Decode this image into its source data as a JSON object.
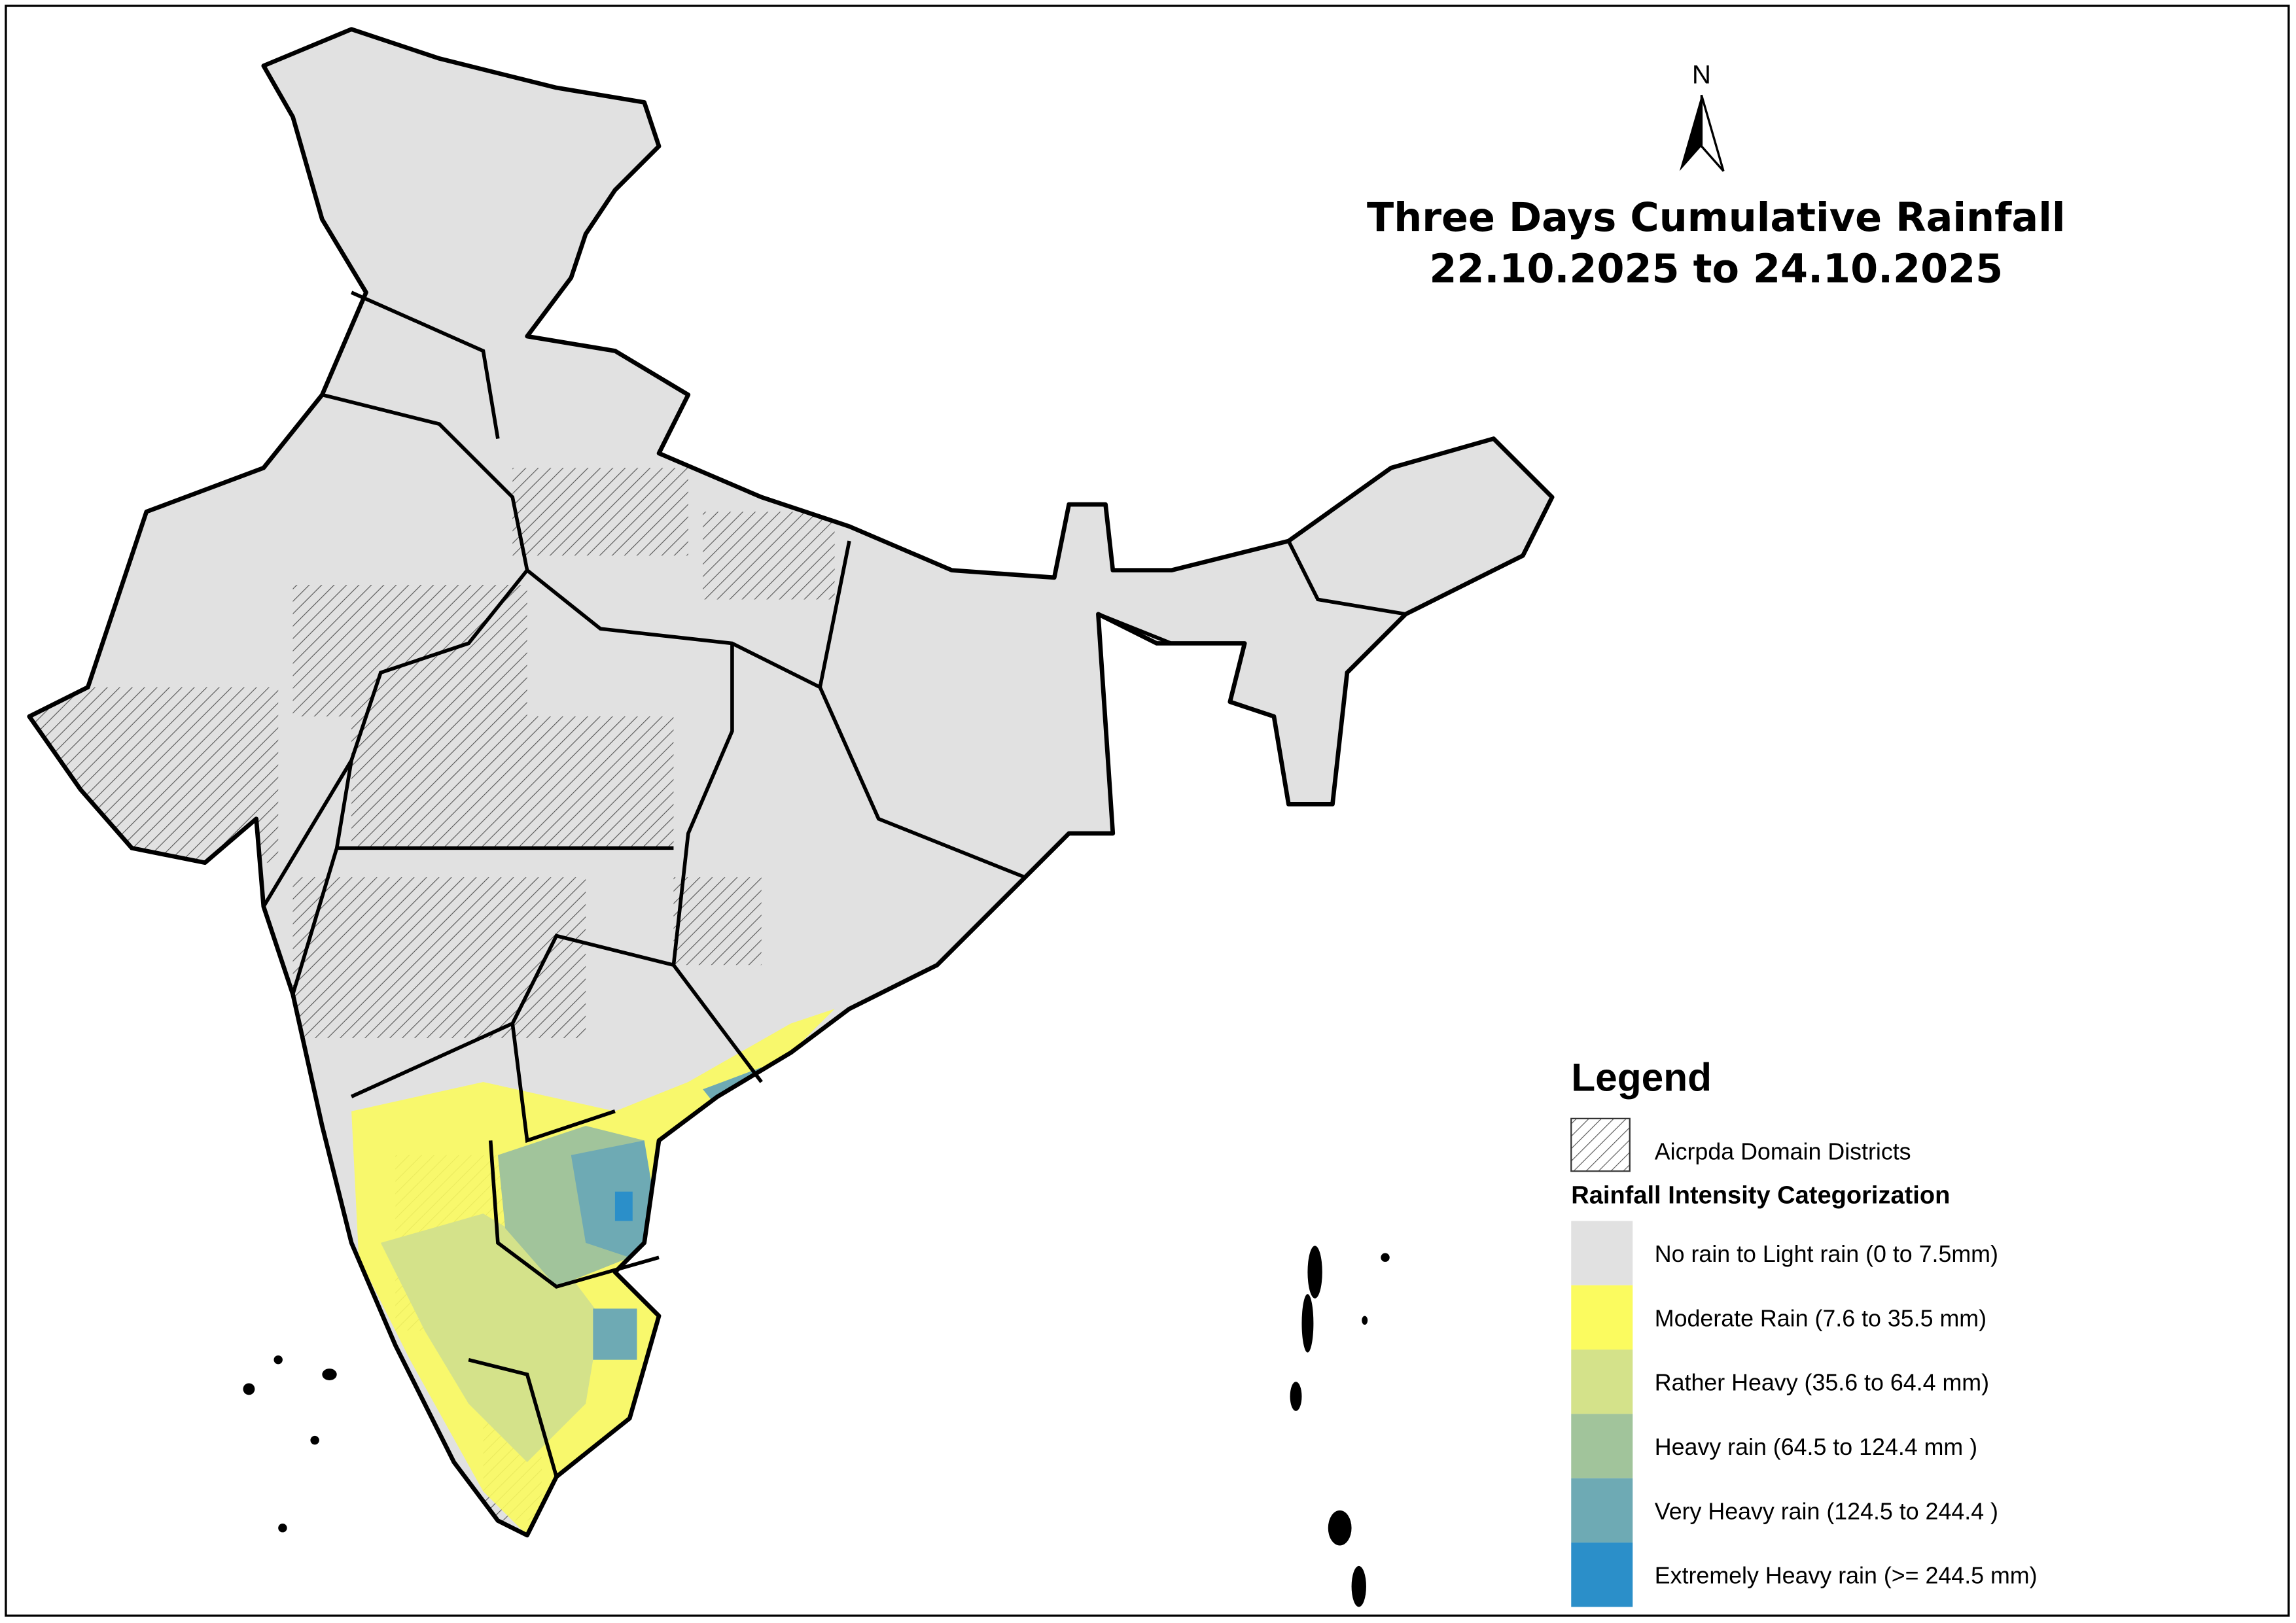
{
  "title": {
    "line1": "Three Days Cumulative Rainfall",
    "line2": "22.10.2025 to 24.10.2025"
  },
  "north_label": "N",
  "legend": {
    "title": "Legend",
    "hatch_label": "Aicrpda Domain Districts",
    "categorization_title": "Rainfall Intensity Categorization",
    "items": [
      {
        "label": "No rain to Light rain (0 to 7.5mm)",
        "color": "#e1e1e1"
      },
      {
        "label": "Moderate Rain (7.6 to 35.5 mm)",
        "color": "#fbfb5f"
      },
      {
        "label": "Rather Heavy (35.6 to 64.4 mm)",
        "color": "#d4e28a"
      },
      {
        "label": "Heavy rain (64.5 to 124.4 mm )",
        "color": "#a1c49b"
      },
      {
        "label": "Very Heavy rain (124.5 to 244.4 )",
        "color": "#6eaab4"
      },
      {
        "label": "Extremely Heavy rain  (>= 244.5 mm)",
        "color": "#2b8fc9"
      }
    ]
  }
}
